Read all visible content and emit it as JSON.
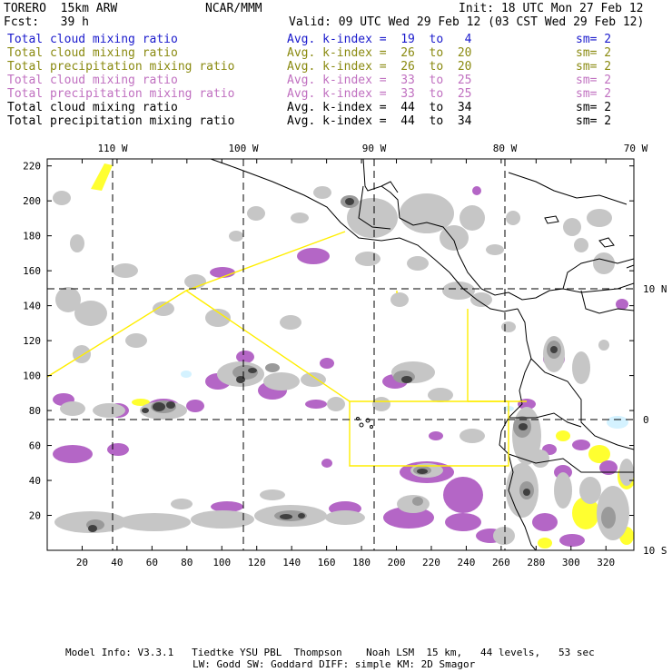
{
  "header": {
    "model_name": "TORERO  15km ARW",
    "org": "NCAR/MMM",
    "init": "Init: 18 UTC Mon 27 Feb 12",
    "fcst": "Fcst:   39 h",
    "valid": "Valid: 09 UTC Wed 29 Feb 12 (03 CST Wed 29 Feb 12)"
  },
  "legend": [
    {
      "field": "Total cloud mixing ratio",
      "index": "Avg. k-index =  19  to   4",
      "sm": "sm= 2",
      "color": "#1a1acc"
    },
    {
      "field": "Total cloud mixing ratio",
      "index": "Avg. k-index =  26  to  20",
      "sm": "sm= 2",
      "color": "#8a8a10"
    },
    {
      "field": "Total precipitation mixing ratio",
      "index": "Avg. k-index =  26  to  20",
      "sm": "sm= 2",
      "color": "#8a8a10"
    },
    {
      "field": "Total cloud mixing ratio",
      "index": "Avg. k-index =  33  to  25",
      "sm": "sm= 2",
      "color": "#c070c0"
    },
    {
      "field": "Total precipitation mixing ratio",
      "index": "Avg. k-index =  33  to  25",
      "sm": "sm= 2",
      "color": "#c070c0"
    },
    {
      "field": "Total cloud mixing ratio",
      "index": "Avg. k-index =  44  to  34",
      "sm": "sm= 2",
      "color": "#000000"
    },
    {
      "field": "Total precipitation mixing ratio",
      "index": "Avg. k-index =  44  to  34",
      "sm": "sm= 2",
      "color": "#000000"
    }
  ],
  "map": {
    "x_ticks": [
      "20",
      "40",
      "60",
      "80",
      "100",
      "120",
      "140",
      "160",
      "180",
      "200",
      "220",
      "240",
      "260",
      "280",
      "300",
      "320"
    ],
    "y_ticks": [
      "20",
      "40",
      "60",
      "80",
      "100",
      "120",
      "140",
      "160",
      "180",
      "200",
      "220"
    ],
    "lon_labels": [
      "110 W",
      "100 W",
      "90 W",
      "80 W",
      "70 W"
    ],
    "lat_labels": [
      "10 N",
      "0",
      "10 S"
    ],
    "colors": {
      "gray_light": "#c8c8c8",
      "gray_mid": "#a0a0a0",
      "gray_dark": "#505050",
      "purple": "#b060c0",
      "yellow": "#ffff00",
      "cyan": "#d0f0ff"
    }
  },
  "footer": {
    "line1": "Model Info: V3.3.1   Tiedtke YSU PBL  Thompson    Noah LSM  15 km,   44 levels,   53 sec",
    "line2": "LW: Godd SW: Goddard DIFF: simple KM: 2D Smagor"
  }
}
